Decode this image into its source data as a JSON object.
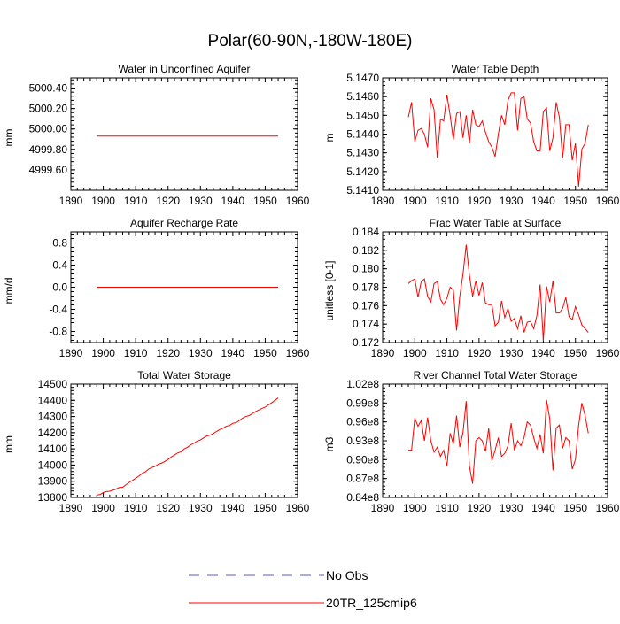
{
  "page": {
    "title": "Polar(60-90N,-180W-180E)"
  },
  "legend": {
    "items": [
      {
        "label": "No Obs",
        "color": "#5a5ad0",
        "style": "dashed"
      },
      {
        "label": "20TR_125cmip6",
        "color": "#ff0000",
        "style": "solid"
      }
    ]
  },
  "chart_data": [
    {
      "type": "line",
      "title": "Water in Unconfined Aquifer",
      "xlabel": "",
      "ylabel": "mm",
      "xlim": [
        1890,
        1960
      ],
      "ylim": [
        4999.4,
        5000.5
      ],
      "xticks": [
        1890,
        1900,
        1910,
        1920,
        1930,
        1940,
        1950,
        1960
      ],
      "yticks": [
        4999.6,
        4999.8,
        5000.0,
        5000.2,
        5000.4
      ],
      "ytick_labels": [
        "4999.60",
        "4999.80",
        "5000.00",
        "5000.20",
        "5000.40"
      ],
      "series": [
        {
          "name": "20TR_125cmip6",
          "color": "#ff0000",
          "x": [
            1898,
            1954
          ],
          "y": [
            4999.93,
            4999.93
          ]
        }
      ]
    },
    {
      "type": "line",
      "title": "Water Table Depth",
      "xlabel": "",
      "ylabel": "m",
      "xlim": [
        1890,
        1960
      ],
      "ylim": [
        5.141,
        5.147
      ],
      "xticks": [
        1890,
        1900,
        1910,
        1920,
        1930,
        1940,
        1950,
        1960
      ],
      "yticks": [
        5.141,
        5.142,
        5.143,
        5.144,
        5.145,
        5.146,
        5.147
      ],
      "ytick_labels": [
        "5.1410",
        "5.1420",
        "5.1430",
        "5.1440",
        "5.1450",
        "5.1460",
        "5.1470"
      ],
      "series": [
        {
          "name": "20TR_125cmip6",
          "color": "#ff0000",
          "x": [
            1898,
            1899,
            1900,
            1901,
            1902,
            1903,
            1904,
            1905,
            1906,
            1907,
            1908,
            1909,
            1910,
            1911,
            1912,
            1913,
            1914,
            1915,
            1916,
            1917,
            1918,
            1919,
            1920,
            1921,
            1922,
            1923,
            1924,
            1925,
            1926,
            1927,
            1928,
            1929,
            1930,
            1931,
            1932,
            1933,
            1934,
            1935,
            1936,
            1937,
            1938,
            1939,
            1940,
            1941,
            1942,
            1943,
            1944,
            1945,
            1946,
            1947,
            1948,
            1949,
            1950,
            1951,
            1952,
            1953,
            1954
          ],
          "y": [
            5.1449,
            5.1457,
            5.1436,
            5.1442,
            5.1443,
            5.144,
            5.1433,
            5.1459,
            5.1453,
            5.1427,
            5.1448,
            5.1447,
            5.1461,
            5.145,
            5.1437,
            5.1451,
            5.1452,
            5.1438,
            5.145,
            5.1435,
            5.1453,
            5.1445,
            5.1444,
            5.1447,
            5.1441,
            5.1436,
            5.1433,
            5.1428,
            5.144,
            5.145,
            5.1445,
            5.1458,
            5.1462,
            5.1462,
            5.1442,
            5.1459,
            5.146,
            5.1448,
            5.1446,
            5.1436,
            5.1431,
            5.1431,
            5.1452,
            5.1454,
            5.1431,
            5.1438,
            5.1457,
            5.1449,
            5.1427,
            5.1445,
            5.1445,
            5.1426,
            5.1435,
            5.1412,
            5.1432,
            5.1435,
            5.1445
          ]
        }
      ]
    },
    {
      "type": "line",
      "title": "Aquifer Recharge Rate",
      "xlabel": "",
      "ylabel": "mm/d",
      "xlim": [
        1890,
        1960
      ],
      "ylim": [
        -1.0,
        1.0
      ],
      "xticks": [
        1890,
        1900,
        1910,
        1920,
        1930,
        1940,
        1950,
        1960
      ],
      "yticks": [
        -0.8,
        -0.4,
        0.0,
        0.4,
        0.8
      ],
      "ytick_labels": [
        "-0.8",
        "-0.4",
        "0.0",
        "0.4",
        "0.8"
      ],
      "series": [
        {
          "name": "20TR_125cmip6",
          "color": "#ff0000",
          "x": [
            1898,
            1954
          ],
          "y": [
            0.0,
            0.0
          ]
        }
      ]
    },
    {
      "type": "line",
      "title": "Frac Water Table at Surface",
      "xlabel": "",
      "ylabel": "unitless [0-1]",
      "xlim": [
        1890,
        1960
      ],
      "ylim": [
        0.172,
        0.184
      ],
      "xticks": [
        1890,
        1900,
        1910,
        1920,
        1930,
        1940,
        1950,
        1960
      ],
      "yticks": [
        0.172,
        0.174,
        0.176,
        0.178,
        0.18,
        0.182,
        0.184
      ],
      "ytick_labels": [
        "0.172",
        "0.174",
        "0.176",
        "0.178",
        "0.180",
        "0.182",
        "0.184"
      ],
      "series": [
        {
          "name": "20TR_125cmip6",
          "color": "#ff0000",
          "x": [
            1898,
            1899,
            1900,
            1901,
            1902,
            1903,
            1904,
            1905,
            1906,
            1907,
            1908,
            1909,
            1910,
            1911,
            1912,
            1913,
            1914,
            1915,
            1916,
            1917,
            1918,
            1919,
            1920,
            1921,
            1922,
            1923,
            1924,
            1925,
            1926,
            1927,
            1928,
            1929,
            1930,
            1931,
            1932,
            1933,
            1934,
            1935,
            1936,
            1937,
            1938,
            1939,
            1940,
            1941,
            1942,
            1943,
            1944,
            1945,
            1946,
            1947,
            1948,
            1949,
            1950,
            1951,
            1952,
            1953,
            1954
          ],
          "y": [
            0.1784,
            0.1787,
            0.1789,
            0.1769,
            0.1786,
            0.1789,
            0.177,
            0.1764,
            0.1784,
            0.1786,
            0.1767,
            0.1761,
            0.1768,
            0.178,
            0.1777,
            0.1733,
            0.177,
            0.1794,
            0.1826,
            0.1793,
            0.177,
            0.1787,
            0.1771,
            0.1785,
            0.1763,
            0.1761,
            0.1761,
            0.1738,
            0.1742,
            0.1765,
            0.1747,
            0.1757,
            0.1743,
            0.1746,
            0.1735,
            0.1749,
            0.1731,
            0.1742,
            0.1743,
            0.1735,
            0.1749,
            0.1783,
            0.1722,
            0.1781,
            0.1764,
            0.1787,
            0.1752,
            0.1752,
            0.1757,
            0.1769,
            0.1748,
            0.1745,
            0.1759,
            0.175,
            0.1739,
            0.1735,
            0.1731
          ]
        }
      ]
    },
    {
      "type": "line",
      "title": "Total Water Storage",
      "xlabel": "",
      "ylabel": "mm",
      "xlim": [
        1890,
        1960
      ],
      "ylim": [
        13800,
        14500
      ],
      "xticks": [
        1890,
        1900,
        1910,
        1920,
        1930,
        1940,
        1950,
        1960
      ],
      "yticks": [
        13800,
        13900,
        14000,
        14100,
        14200,
        14300,
        14400,
        14500
      ],
      "ytick_labels": [
        "13800",
        "13900",
        "14000",
        "14100",
        "14200",
        "14300",
        "14400",
        "14500"
      ],
      "series": [
        {
          "name": "20TR_125cmip6",
          "color": "#ff0000",
          "x": [
            1898,
            1899,
            1900,
            1901,
            1902,
            1903,
            1904,
            1905,
            1906,
            1907,
            1908,
            1909,
            1910,
            1911,
            1912,
            1913,
            1914,
            1915,
            1916,
            1917,
            1918,
            1919,
            1920,
            1921,
            1922,
            1923,
            1924,
            1925,
            1926,
            1927,
            1928,
            1929,
            1930,
            1931,
            1932,
            1933,
            1934,
            1935,
            1936,
            1937,
            1938,
            1939,
            1940,
            1941,
            1942,
            1943,
            1944,
            1945,
            1946,
            1947,
            1948,
            1949,
            1950,
            1951,
            1952,
            1953,
            1954
          ],
          "y": [
            13815,
            13818,
            13830,
            13836,
            13838,
            13845,
            13852,
            13862,
            13863,
            13878,
            13893,
            13905,
            13918,
            13932,
            13948,
            13958,
            13975,
            13985,
            13992,
            14005,
            14012,
            14022,
            14035,
            14050,
            14062,
            14075,
            14082,
            14100,
            14110,
            14125,
            14135,
            14148,
            14155,
            14168,
            14180,
            14185,
            14195,
            14208,
            14220,
            14228,
            14240,
            14245,
            14258,
            14262,
            14275,
            14290,
            14300,
            14305,
            14318,
            14330,
            14340,
            14350,
            14358,
            14372,
            14385,
            14400,
            14415
          ]
        }
      ]
    },
    {
      "type": "line",
      "title": "River Channel Total Water Storage",
      "xlabel": "",
      "ylabel": "m3",
      "xlim": [
        1890,
        1960
      ],
      "ylim": [
        84000000.0,
        102000000.0
      ],
      "xticks": [
        1890,
        1900,
        1910,
        1920,
        1930,
        1940,
        1950,
        1960
      ],
      "yticks": [
        84000000.0,
        87000000.0,
        90000000.0,
        93000000.0,
        96000000.0,
        99000000.0,
        102000000.0
      ],
      "ytick_labels": [
        "0.84e8",
        "0.87e8",
        "0.90e8",
        "0.93e8",
        "0.96e8",
        "0.99e8",
        "1.02e8"
      ],
      "series": [
        {
          "name": "20TR_125cmip6",
          "color": "#ff0000",
          "x": [
            1898,
            1899,
            1900,
            1901,
            1902,
            1903,
            1904,
            1905,
            1906,
            1907,
            1908,
            1909,
            1910,
            1911,
            1912,
            1913,
            1914,
            1915,
            1916,
            1917,
            1918,
            1919,
            1920,
            1921,
            1922,
            1923,
            1924,
            1925,
            1926,
            1927,
            1928,
            1929,
            1930,
            1931,
            1932,
            1933,
            1934,
            1935,
            1936,
            1937,
            1938,
            1939,
            1940,
            1941,
            1942,
            1943,
            1944,
            1945,
            1946,
            1947,
            1948,
            1949,
            1950,
            1951,
            1952,
            1953,
            1954
          ],
          "y": [
            91500000.0,
            91500000.0,
            96600000.0,
            95300000.0,
            96200000.0,
            93000000.0,
            96700000.0,
            93000000.0,
            91200000.0,
            92000000.0,
            90500000.0,
            91500000.0,
            89000000.0,
            94200000.0,
            92500000.0,
            97000000.0,
            92000000.0,
            94300000.0,
            99300000.0,
            89000000.0,
            86200000.0,
            93000000.0,
            93500000.0,
            93000000.0,
            91300000.0,
            95000000.0,
            89800000.0,
            91500000.0,
            93500000.0,
            90500000.0,
            91000000.0,
            92200000.0,
            95800000.0,
            91500000.0,
            93000000.0,
            92200000.0,
            93500000.0,
            96000000.0,
            95500000.0,
            93500000.0,
            91800000.0,
            94000000.0,
            91000000.0,
            99500000.0,
            96500000.0,
            88300000.0,
            95000000.0,
            95500000.0,
            91800000.0,
            93500000.0,
            93000000.0,
            88500000.0,
            90000000.0,
            95500000.0,
            99000000.0,
            97000000.0,
            94200000.0
          ]
        }
      ]
    }
  ]
}
